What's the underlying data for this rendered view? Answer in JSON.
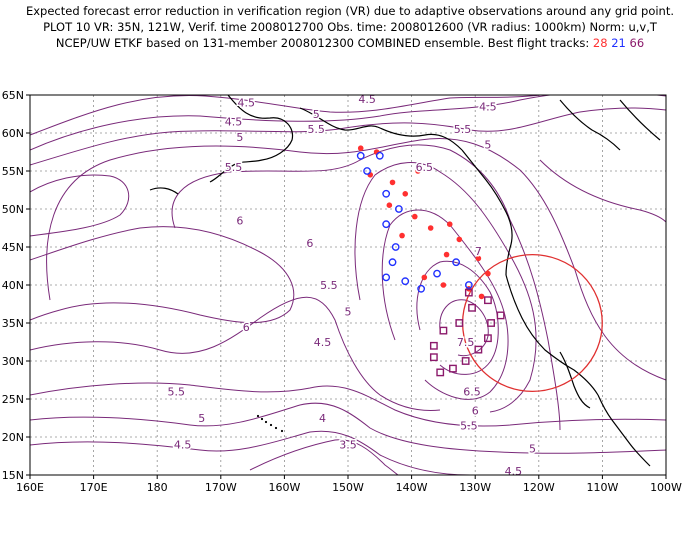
{
  "title": {
    "line1": "Expected forecast error reduction in verification region (VR) due to adaptive observations around any grid point.",
    "line2": "PLOT 10 VR: 35N, 121W, Verif. time 2008012700 Obs. time: 2008012600 (VR radius: 1000km) Norm: u,v,T",
    "line3_prefix": "NCEP/UW ETKF based on 131-member 2008012300 COMBINED ensemble.  Best flight tracks:",
    "track_a": "28",
    "track_b": "21",
    "track_c": "66"
  },
  "axes": {
    "lat_labels": [
      "65N",
      "60N",
      "55N",
      "50N",
      "45N",
      "40N",
      "35N",
      "30N",
      "25N",
      "20N",
      "15N"
    ],
    "lon_labels": [
      "160E",
      "170E",
      "180",
      "170W",
      "160W",
      "150W",
      "140W",
      "130W",
      "120W",
      "110W",
      "100W"
    ]
  },
  "contour_labels": [
    {
      "text": "4.5",
      "lon": -166,
      "lat": 64
    },
    {
      "text": "4.5",
      "lon": -168,
      "lat": 61.5
    },
    {
      "text": "4.5",
      "lon": -147,
      "lat": 64.5
    },
    {
      "text": "4.5",
      "lon": -128,
      "lat": 63.5
    },
    {
      "text": "5",
      "lon": -155,
      "lat": 62.5
    },
    {
      "text": "5",
      "lon": -167,
      "lat": 59.5
    },
    {
      "text": "5.5",
      "lon": -155,
      "lat": 60.5
    },
    {
      "text": "5.5",
      "lon": -132,
      "lat": 60.5
    },
    {
      "text": "5",
      "lon": -128,
      "lat": 58.5
    },
    {
      "text": "5.5",
      "lon": -168,
      "lat": 55.5
    },
    {
      "text": "6.5",
      "lon": -138,
      "lat": 55.5
    },
    {
      "text": "6",
      "lon": -167,
      "lat": 48.5
    },
    {
      "text": "6",
      "lon": -156,
      "lat": 45.5
    },
    {
      "text": "7",
      "lon": -129.5,
      "lat": 44.5
    },
    {
      "text": "5.5",
      "lon": -153,
      "lat": 40
    },
    {
      "text": "5",
      "lon": -150,
      "lat": 36.5
    },
    {
      "text": "6",
      "lon": -166,
      "lat": 34.5
    },
    {
      "text": "4.5",
      "lon": -154,
      "lat": 32.5
    },
    {
      "text": "7.5",
      "lon": -131.5,
      "lat": 32.5
    },
    {
      "text": "6.5",
      "lon": -130.5,
      "lat": 26
    },
    {
      "text": "5.5",
      "lon": -177,
      "lat": 26
    },
    {
      "text": "5",
      "lon": -173,
      "lat": 22.5
    },
    {
      "text": "6",
      "lon": -130,
      "lat": 23.5
    },
    {
      "text": "5.5",
      "lon": -131,
      "lat": 21.5
    },
    {
      "text": "4.5",
      "lon": -176,
      "lat": 19
    },
    {
      "text": "4",
      "lon": -154,
      "lat": 22.5
    },
    {
      "text": "3.5",
      "lon": -150,
      "lat": 19
    },
    {
      "text": "5",
      "lon": -121,
      "lat": 18.5
    },
    {
      "text": "4.5",
      "lon": -124,
      "lat": 15.5
    }
  ],
  "verification_region": {
    "center_lon": -121,
    "center_lat": 35,
    "radius_km": 1000
  },
  "flight_tracks": {
    "red_28": [
      [
        -148,
        58
      ],
      [
        -145.5,
        57.5
      ],
      [
        -146.5,
        54.5
      ],
      [
        -143,
        53.5
      ],
      [
        -139,
        55
      ],
      [
        -141,
        52
      ],
      [
        -143.5,
        50.5
      ],
      [
        -139.5,
        49
      ],
      [
        -141.5,
        46.5
      ],
      [
        -137,
        47.5
      ],
      [
        -134,
        48
      ],
      [
        -132.5,
        46
      ],
      [
        -134.5,
        44
      ],
      [
        -129.5,
        43.5
      ],
      [
        -128,
        41.5
      ],
      [
        -138,
        41
      ],
      [
        -135,
        40
      ],
      [
        -131,
        39.5
      ],
      [
        -129,
        38.5
      ]
    ],
    "blue_21": [
      [
        -148,
        57
      ],
      [
        -145,
        57
      ],
      [
        -147,
        55
      ],
      [
        -144,
        52
      ],
      [
        -142,
        50
      ],
      [
        -144,
        48
      ],
      [
        -142.5,
        45
      ],
      [
        -143,
        43
      ],
      [
        -144,
        41
      ],
      [
        -141,
        40.5
      ],
      [
        -138.5,
        39.5
      ],
      [
        -136,
        41.5
      ],
      [
        -133,
        43
      ],
      [
        -131,
        40
      ]
    ],
    "purple_66": [
      [
        -131,
        39
      ],
      [
        -128,
        38
      ],
      [
        -130.5,
        37
      ],
      [
        -126,
        36
      ],
      [
        -127.5,
        35
      ],
      [
        -132.5,
        35
      ],
      [
        -135,
        34
      ],
      [
        -136.5,
        32
      ],
      [
        -136.5,
        30.5
      ],
      [
        -135.5,
        28.5
      ],
      [
        -133.5,
        29
      ],
      [
        -131.5,
        30
      ],
      [
        -129.5,
        31.5
      ],
      [
        -128,
        33
      ]
    ]
  },
  "colors": {
    "contour": "#7a2a7a",
    "circle": "#e03030",
    "track_red": "#ff3030",
    "track_blue": "#2030ff",
    "track_purple": "#8b1a6b",
    "coast": "#000000",
    "grid": "#909090"
  }
}
